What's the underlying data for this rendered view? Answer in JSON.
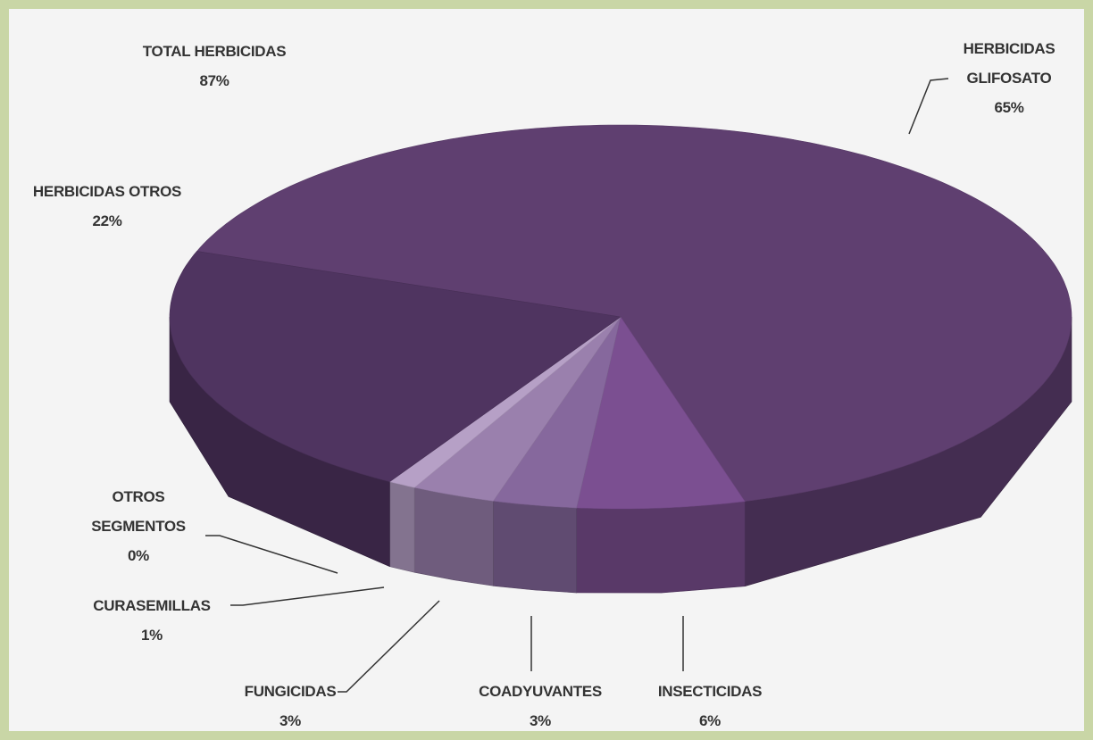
{
  "chart_data": {
    "type": "pie3d",
    "categories": [
      "HERBICIDAS GLIFOSATO",
      "INSECTICIDAS",
      "COADYUVANTES",
      "FUNGICIDAS",
      "CURASEMILLAS",
      "OTROS SEGMENTOS",
      "HERBICIDAS OTROS"
    ],
    "values": [
      65,
      6,
      3,
      3,
      1,
      0,
      22
    ],
    "value_labels": [
      "65%",
      "6%",
      "3%",
      "3%",
      "1%",
      "0%",
      "22%"
    ],
    "colors": [
      "#5f3f70",
      "#7b4f91",
      "#86689d",
      "#9a80ad",
      "#b6a0c6",
      "#cbbcd7",
      "#4f3460"
    ],
    "annotation": {
      "text": "TOTAL HERBICIDAS",
      "value": 87,
      "value_label": "87%"
    }
  }
}
